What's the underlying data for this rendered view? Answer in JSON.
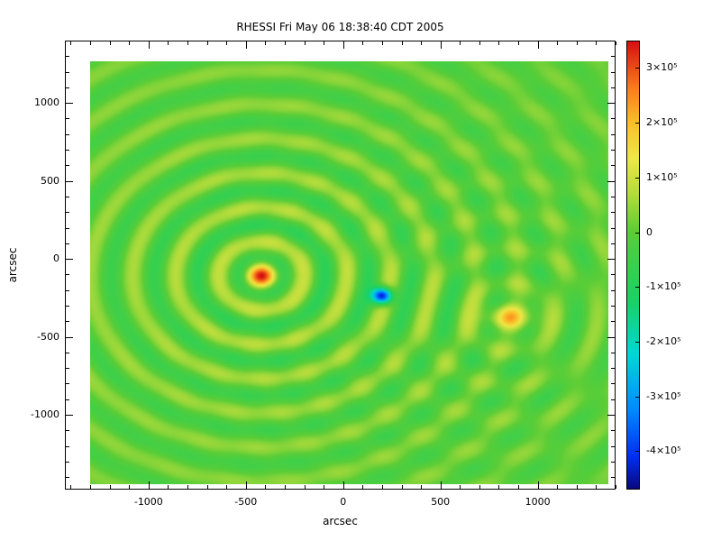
{
  "chart_data": {
    "type": "heatmap",
    "title": "RHESSI Fri May 06 18:38:40 CDT 2005",
    "xlabel": "arcsec",
    "ylabel": "arcsec",
    "xlim": [
      -1430,
      1400
    ],
    "ylim": [
      -1480,
      1400
    ],
    "x_ticks": [
      {
        "value": -1000,
        "label": "-1000"
      },
      {
        "value": -500,
        "label": "-500"
      },
      {
        "value": 0,
        "label": "0"
      },
      {
        "value": 500,
        "label": "500"
      },
      {
        "value": 1000,
        "label": "1000"
      }
    ],
    "y_ticks": [
      {
        "value": -1000,
        "label": "-1000"
      },
      {
        "value": -500,
        "label": "-500"
      },
      {
        "value": 0,
        "label": "0"
      },
      {
        "value": 500,
        "label": "500"
      },
      {
        "value": 1000,
        "label": "1000"
      }
    ],
    "minor_tick_interval": 100,
    "grid": false,
    "legend": "colorbar-right",
    "image_extent": {
      "x": [
        -1300,
        1360
      ],
      "y": [
        -1445,
        1265
      ]
    },
    "value_range": [
      -470000,
      350000
    ],
    "background": "#ffffff",
    "axis_color": "#000000",
    "colorbar_ticks": [
      {
        "value": 300000,
        "label": "3×10⁵"
      },
      {
        "value": 200000,
        "label": "2×10⁵"
      },
      {
        "value": 100000,
        "label": "1×10⁵"
      },
      {
        "value": 0,
        "label": "0"
      },
      {
        "value": -100000,
        "label": "-1×10⁵"
      },
      {
        "value": -200000,
        "label": "-2×10⁵"
      },
      {
        "value": -300000,
        "label": "-3×10⁵"
      },
      {
        "value": -400000,
        "label": "-4×10⁵"
      }
    ],
    "colormap": [
      {
        "t": 0.0,
        "rgb": [
          8,
          10,
          125
        ]
      },
      {
        "t": 0.07,
        "rgb": [
          0,
          45,
          240
        ]
      },
      {
        "t": 0.18,
        "rgb": [
          0,
          140,
          255
        ]
      },
      {
        "t": 0.3,
        "rgb": [
          0,
          215,
          215
        ]
      },
      {
        "t": 0.42,
        "rgb": [
          25,
          210,
          100
        ]
      },
      {
        "t": 0.573,
        "rgb": [
          90,
          205,
          55
        ]
      },
      {
        "t": 0.66,
        "rgb": [
          180,
          220,
          60
        ]
      },
      {
        "t": 0.74,
        "rgb": [
          238,
          232,
          70
        ]
      },
      {
        "t": 0.82,
        "rgb": [
          250,
          190,
          40
        ]
      },
      {
        "t": 0.9,
        "rgb": [
          248,
          120,
          30
        ]
      },
      {
        "t": 1.0,
        "rgb": [
          215,
          15,
          15
        ]
      }
    ],
    "sources": [
      {
        "name": "primary-source",
        "x": -420,
        "y": -110,
        "peak": 250000,
        "sigma_x": 60,
        "sigma_y": 60,
        "ring_amp": 95000,
        "ring_wavelength": 220,
        "ring_decay": 1500
      },
      {
        "name": "negative-sidelobe",
        "x": 200,
        "y": -238,
        "peak": -490000,
        "sigma_x": 36,
        "sigma_y": 36,
        "ring_amp": 0,
        "ring_wavelength": 0,
        "ring_decay": 1
      },
      {
        "name": "secondary-source",
        "x": 850,
        "y": -375,
        "peak": 160000,
        "sigma_x": 95,
        "sigma_y": 60,
        "ring_amp": 45000,
        "ring_wavelength": 220,
        "ring_decay": 900
      }
    ]
  }
}
